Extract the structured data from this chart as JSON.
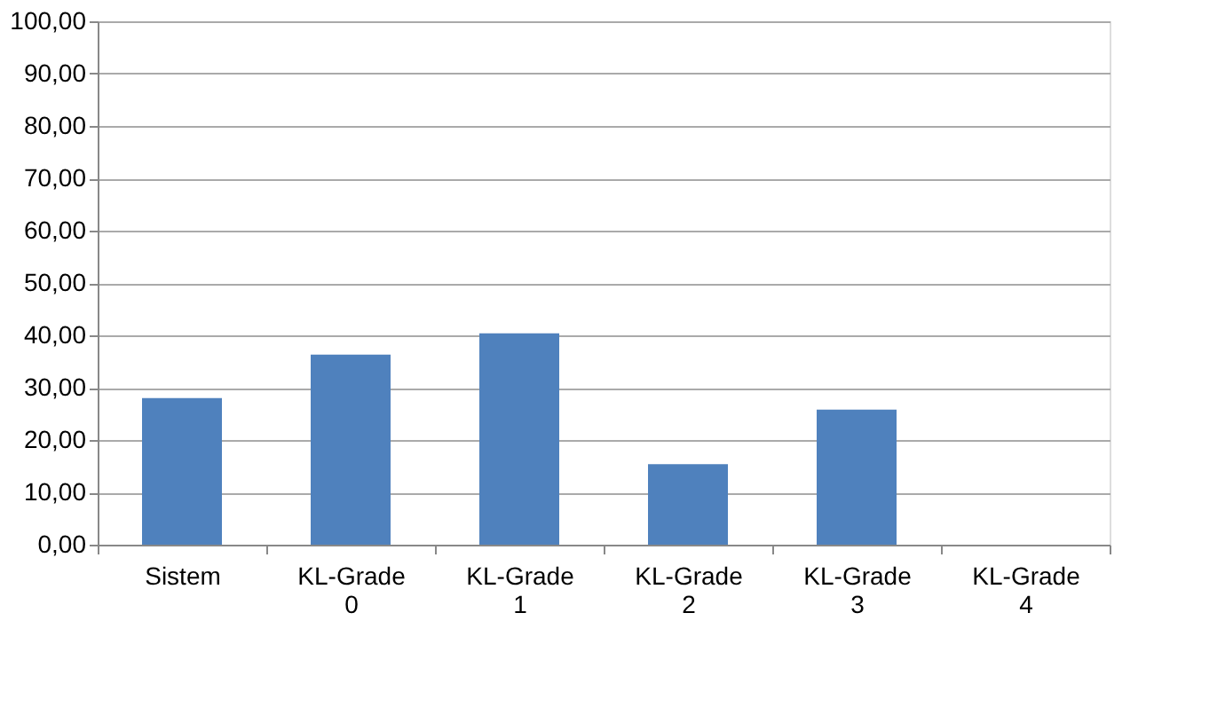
{
  "chart_data": {
    "type": "bar",
    "categories": [
      "Sistem",
      "KL-Grade 0",
      "KL-Grade 1",
      "KL-Grade 2",
      "KL-Grade 3",
      "KL-Grade 4"
    ],
    "values": [
      28,
      36.3,
      40.4,
      15.4,
      25.8,
      0
    ],
    "color": "#4f81bd",
    "ylim": [
      0,
      100
    ],
    "yticks": [
      {
        "value": 0,
        "label": "0,00"
      },
      {
        "value": 10,
        "label": "10,00"
      },
      {
        "value": 20,
        "label": "20,00"
      },
      {
        "value": 30,
        "label": "30,00"
      },
      {
        "value": 40,
        "label": "40,00"
      },
      {
        "value": 50,
        "label": "50,00"
      },
      {
        "value": 60,
        "label": "60,00"
      },
      {
        "value": 70,
        "label": "70,00"
      },
      {
        "value": 80,
        "label": "80,00"
      },
      {
        "value": 90,
        "label": "90,00"
      },
      {
        "value": 100,
        "label": "100,00"
      }
    ],
    "grid": "y"
  }
}
